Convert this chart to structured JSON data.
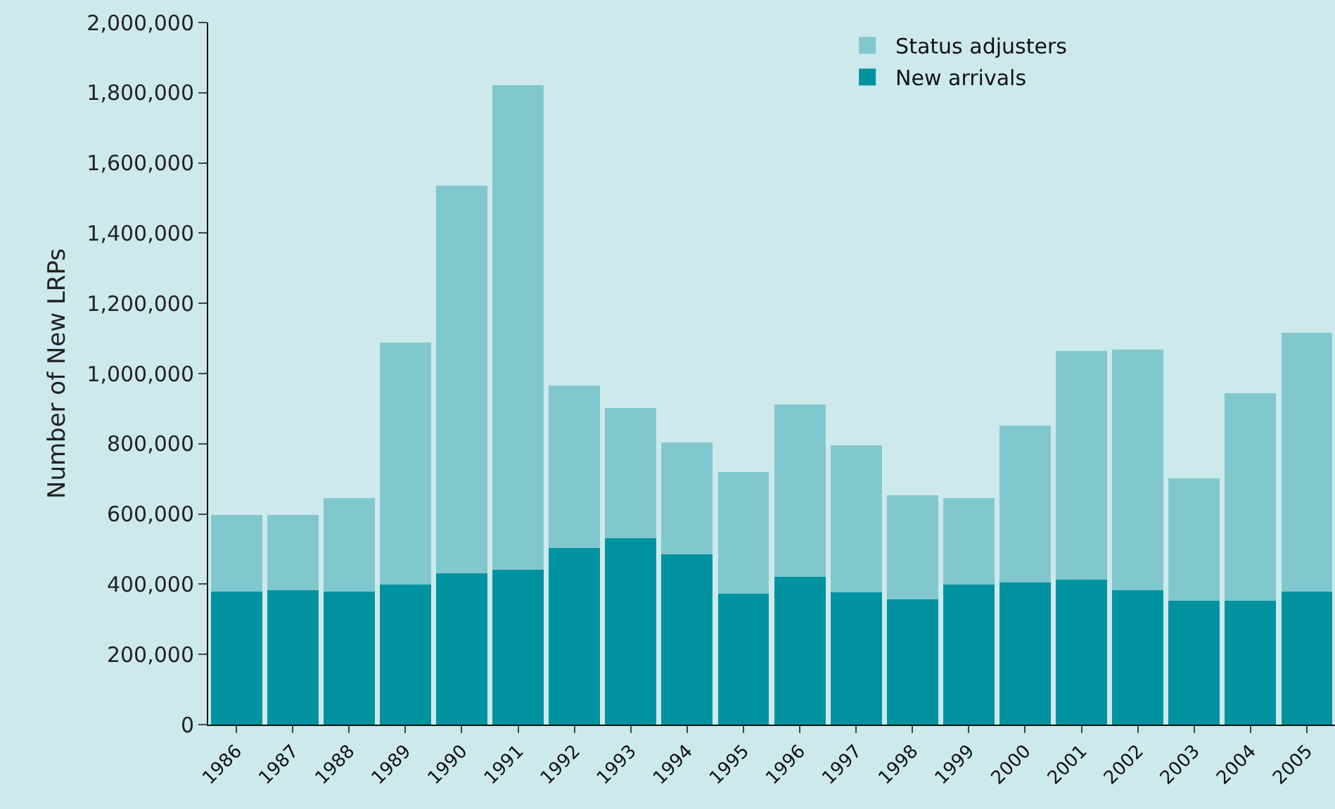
{
  "chart_data": {
    "type": "bar",
    "stacked": true,
    "ylabel": "Number of New LRPs",
    "categories": [
      "1986",
      "1987",
      "1988",
      "1989",
      "1990",
      "1991",
      "1992",
      "1993",
      "1994",
      "1995",
      "1996",
      "1997",
      "1998",
      "1999",
      "2000",
      "2001",
      "2002",
      "2003",
      "2004",
      "2005"
    ],
    "series": [
      {
        "name": "New arrivals",
        "color": "#00939f",
        "values": [
          378000,
          383000,
          378000,
          399000,
          431000,
          440000,
          503000,
          532000,
          484000,
          373000,
          420000,
          376000,
          357000,
          399000,
          404000,
          412000,
          383000,
          353000,
          353000,
          379000
        ]
      },
      {
        "name": "Status adjusters",
        "color": "#80c8ce",
        "values": [
          219000,
          214000,
          267000,
          689000,
          1104000,
          1381000,
          463000,
          370000,
          319000,
          347000,
          491000,
          420000,
          297000,
          246000,
          447000,
          653000,
          686000,
          349000,
          590000,
          738000
        ]
      }
    ],
    "ylim": [
      0,
      2000000
    ],
    "yticks": [
      {
        "value": 0,
        "label": "0"
      },
      {
        "value": 200000,
        "label": "200,000"
      },
      {
        "value": 400000,
        "label": "400,000"
      },
      {
        "value": 600000,
        "label": "600,000"
      },
      {
        "value": 800000,
        "label": "800,000"
      },
      {
        "value": 1000000,
        "label": "1,000,000"
      },
      {
        "value": 1200000,
        "label": "1,200,000"
      },
      {
        "value": 1400000,
        "label": "1,400,000"
      },
      {
        "value": 1600000,
        "label": "1,600,000"
      },
      {
        "value": 1800000,
        "label": "1,800,000"
      },
      {
        "value": 2000000,
        "label": "2,000,000"
      }
    ],
    "grid": false,
    "legend": "top right"
  }
}
